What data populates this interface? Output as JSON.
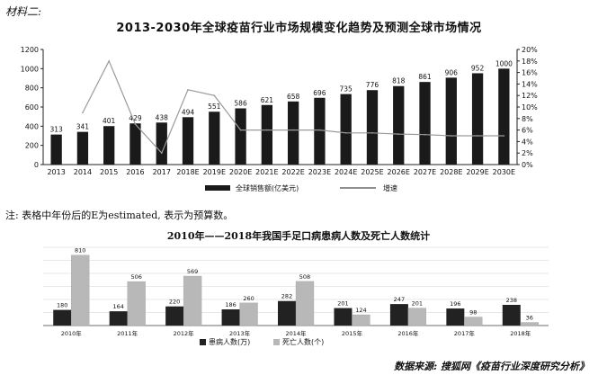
{
  "header": {
    "material_label": "材料二:",
    "note": "注: 表格中年份后的E为estimated, 表示为预算数。",
    "source": "数据来源: 搜狐网《疫苗行业深度研究分析》"
  },
  "chart_data": [
    {
      "type": "bar",
      "title": "2013-2030年全球疫苗行业市场规模变化趋势及预测全球市场情况",
      "categories": [
        "2013",
        "2014",
        "2015",
        "2016",
        "2017",
        "2018E",
        "2019E",
        "2020E",
        "2021E",
        "2022E",
        "2023E",
        "2024E",
        "2025E",
        "2026E",
        "2027E",
        "2028E",
        "2029E",
        "2030E"
      ],
      "series": [
        {
          "name": "全球销售额(亿美元)",
          "kind": "bar",
          "axis": "left",
          "values": [
            313,
            341,
            401,
            429,
            438,
            494,
            551,
            586,
            621,
            658,
            696,
            735,
            776,
            818,
            861,
            906,
            952,
            1000
          ]
        },
        {
          "name": "增速",
          "kind": "line",
          "axis": "right",
          "unit": "%",
          "values": [
            null,
            9,
            18,
            7,
            2,
            13,
            12,
            6,
            6,
            6,
            6,
            5.5,
            5.5,
            5.3,
            5.2,
            5,
            5,
            5
          ]
        }
      ],
      "ylim": [
        0,
        1200
      ],
      "yticks": [
        0,
        200,
        400,
        600,
        800,
        1000,
        1200
      ],
      "y2lim": [
        0,
        20
      ],
      "y2ticks": [
        "0%",
        "2%",
        "4%",
        "6%",
        "8%",
        "10%",
        "12%",
        "14%",
        "16%",
        "18%",
        "20%"
      ],
      "legend_position": "bottom",
      "grid": false,
      "colors": {
        "bar": "#1a1a1a",
        "line": "#9a9a9a"
      }
    },
    {
      "type": "bar",
      "title": "2010年——2018年我国手足口病患病人数及死亡人数统计",
      "categories": [
        "2010年",
        "2011年",
        "2012年",
        "2013年",
        "2014年",
        "2015年",
        "2016年",
        "2017年",
        "2018年"
      ],
      "series": [
        {
          "name": "患病人数(万)",
          "values": [
            180,
            164,
            220,
            186,
            282,
            201,
            247,
            196,
            238
          ]
        },
        {
          "name": "死亡人数(个)",
          "values": [
            810,
            506,
            569,
            260,
            508,
            124,
            201,
            98,
            36
          ]
        }
      ],
      "ylim": [
        0,
        900
      ],
      "legend_position": "bottom",
      "grid": true,
      "colors": {
        "series1": "#222222",
        "series2": "#b8b8b8"
      }
    }
  ]
}
